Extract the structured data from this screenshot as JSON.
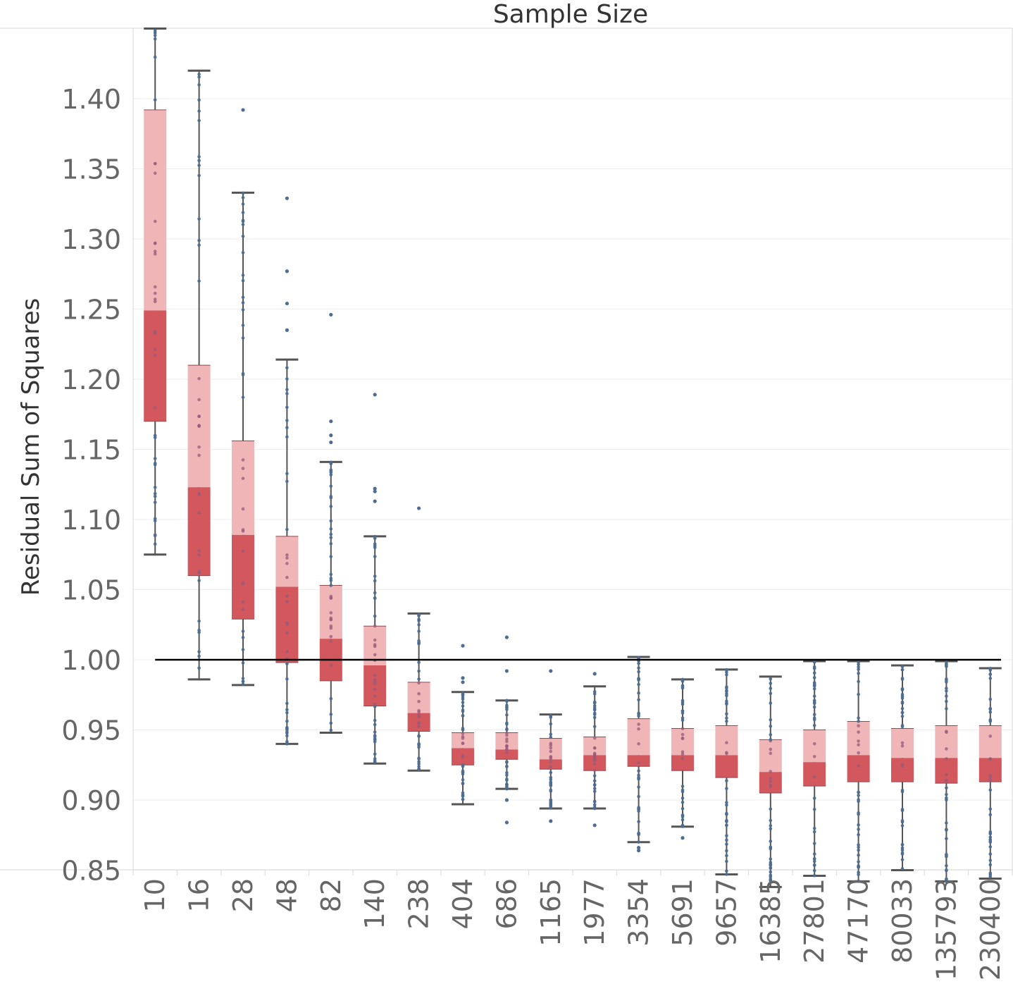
{
  "chart_data": {
    "type": "box",
    "title": "Sample Size",
    "ylabel": "Residual Sum of Squares",
    "xlabel": "",
    "ylim": [
      0.835,
      1.45
    ],
    "yticks": [
      "1.40",
      "1.35",
      "1.30",
      "1.25",
      "1.20",
      "1.15",
      "1.10",
      "1.05",
      "1.00",
      "0.95",
      "0.90",
      "0.85"
    ],
    "reference_line": 1.0,
    "grid": true,
    "colors": {
      "upper_box": "#f0b5b7",
      "lower_box": "#d3585e",
      "whisker": "#555555",
      "point": "#4e6d8f",
      "reference": "#000000",
      "grid": "#eeeeee",
      "axis_text": "#666666"
    },
    "categories": [
      "10",
      "16",
      "28",
      "48",
      "82",
      "140",
      "238",
      "404",
      "686",
      "1165",
      "1977",
      "3354",
      "5691",
      "9657",
      "16385",
      "27801",
      "47170",
      "80033",
      "135793",
      "230400"
    ],
    "boxes": [
      {
        "min": 1.075,
        "q1": 1.17,
        "median": 1.249,
        "q3": 1.392,
        "max": 1.45,
        "outliers": []
      },
      {
        "min": 0.986,
        "q1": 1.06,
        "median": 1.123,
        "q3": 1.21,
        "max": 1.42,
        "outliers": []
      },
      {
        "min": 0.982,
        "q1": 1.029,
        "median": 1.089,
        "q3": 1.156,
        "max": 1.333,
        "outliers": [
          1.392
        ]
      },
      {
        "min": 0.94,
        "q1": 0.998,
        "median": 1.052,
        "q3": 1.088,
        "max": 1.214,
        "outliers": [
          1.329,
          1.277,
          1.254,
          1.235
        ]
      },
      {
        "min": 0.948,
        "q1": 0.985,
        "median": 1.015,
        "q3": 1.053,
        "max": 1.141,
        "outliers": [
          1.246,
          1.17,
          1.16,
          1.155
        ]
      },
      {
        "min": 0.926,
        "q1": 0.967,
        "median": 0.996,
        "q3": 1.024,
        "max": 1.088,
        "outliers": [
          1.189,
          1.122,
          1.12,
          1.113
        ]
      },
      {
        "min": 0.921,
        "q1": 0.949,
        "median": 0.962,
        "q3": 0.984,
        "max": 1.033,
        "outliers": [
          1.108
        ]
      },
      {
        "min": 0.897,
        "q1": 0.925,
        "median": 0.937,
        "q3": 0.948,
        "max": 0.977,
        "outliers": [
          1.01,
          0.987,
          0.984
        ]
      },
      {
        "min": 0.908,
        "q1": 0.929,
        "median": 0.936,
        "q3": 0.948,
        "max": 0.971,
        "outliers": [
          1.016,
          0.992,
          0.9,
          0.884
        ]
      },
      {
        "min": 0.894,
        "q1": 0.922,
        "median": 0.929,
        "q3": 0.944,
        "max": 0.961,
        "outliers": [
          0.992,
          0.885
        ]
      },
      {
        "min": 0.894,
        "q1": 0.921,
        "median": 0.932,
        "q3": 0.945,
        "max": 0.981,
        "outliers": [
          0.99,
          0.882
        ]
      },
      {
        "min": 0.87,
        "q1": 0.924,
        "median": 0.932,
        "q3": 0.958,
        "max": 1.002,
        "outliers": [
          0.866,
          0.864
        ]
      },
      {
        "min": 0.881,
        "q1": 0.921,
        "median": 0.932,
        "q3": 0.951,
        "max": 0.986,
        "outliers": [
          0.873
        ]
      },
      {
        "min": 0.847,
        "q1": 0.916,
        "median": 0.932,
        "q3": 0.953,
        "max": 0.993,
        "outliers": []
      },
      {
        "min": 0.838,
        "q1": 0.905,
        "median": 0.92,
        "q3": 0.943,
        "max": 0.988,
        "outliers": []
      },
      {
        "min": 0.846,
        "q1": 0.91,
        "median": 0.927,
        "q3": 0.95,
        "max": 0.999,
        "outliers": []
      },
      {
        "min": 0.842,
        "q1": 0.913,
        "median": 0.932,
        "q3": 0.956,
        "max": 0.999,
        "outliers": []
      },
      {
        "min": 0.85,
        "q1": 0.913,
        "median": 0.93,
        "q3": 0.951,
        "max": 0.996,
        "outliers": []
      },
      {
        "min": 0.842,
        "q1": 0.912,
        "median": 0.93,
        "q3": 0.953,
        "max": 0.999,
        "outliers": []
      },
      {
        "min": 0.844,
        "q1": 0.913,
        "median": 0.93,
        "q3": 0.953,
        "max": 0.994,
        "outliers": []
      }
    ]
  }
}
